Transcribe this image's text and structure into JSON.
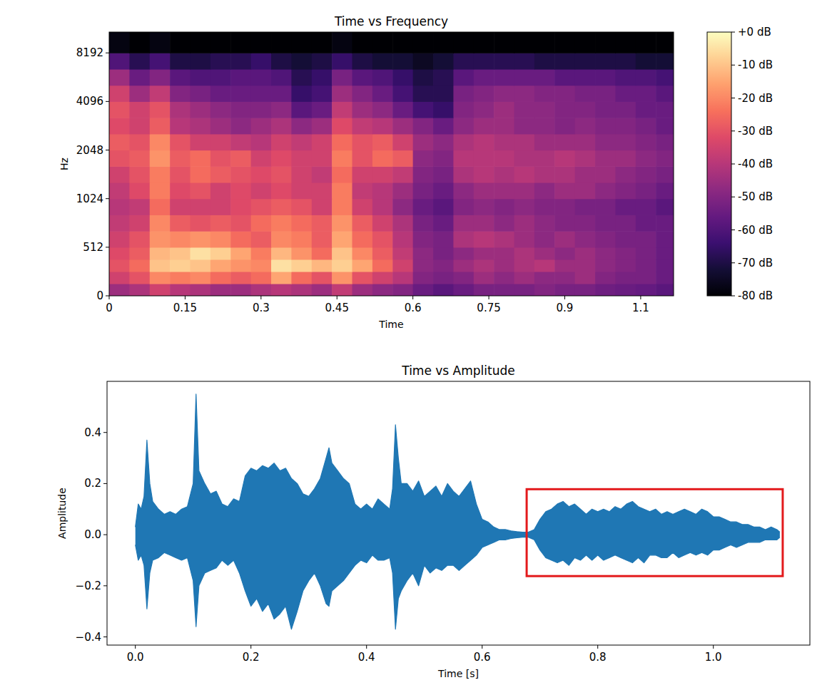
{
  "chart_data": [
    {
      "type": "heatmap",
      "title": "Time vs Frequency",
      "x_label": "Time",
      "y_label": "Hz",
      "log": "y",
      "xlim": [
        0,
        1.115
      ],
      "ylim": [
        0,
        11025
      ],
      "xticks": [
        0,
        0.15,
        0.3,
        0.45,
        0.6,
        0.75,
        0.9,
        {
          "value": 1.05,
          "label": "1.1"
        }
      ],
      "yticks": [
        0,
        512,
        1024,
        2048,
        4096,
        8192
      ],
      "x_edges": [
        0,
        0.04,
        0.08,
        0.12,
        0.16,
        0.2,
        0.24,
        0.28,
        0.32,
        0.36,
        0.4,
        0.44,
        0.48,
        0.52,
        0.56,
        0.6,
        0.64,
        0.68,
        0.72,
        0.76,
        0.8,
        0.84,
        0.88,
        0.92,
        0.96,
        1.0,
        1.04,
        1.08,
        1.115
      ],
      "y_edges": [
        0,
        128,
        256,
        384,
        512,
        645,
        813,
        1024,
        1290,
        1625,
        2048,
        2580,
        3250,
        4096,
        5160,
        6500,
        8192,
        11025
      ],
      "cells": [
        [
          -45,
          -42,
          -35,
          -40,
          -42,
          -45,
          -45,
          -42,
          -40,
          -42,
          -45,
          -38,
          -45,
          -48,
          -50,
          -55,
          -58,
          -55,
          -52,
          -52,
          -52,
          -50,
          -52,
          -52,
          -54,
          -55,
          -56,
          -58
        ],
        [
          -35,
          -30,
          -20,
          -22,
          -20,
          -25,
          -28,
          -25,
          -15,
          -25,
          -30,
          -18,
          -30,
          -35,
          -40,
          -50,
          -52,
          -50,
          -45,
          -48,
          -45,
          -48,
          -48,
          -45,
          -50,
          -52,
          -52,
          -55
        ],
        [
          -30,
          -25,
          -10,
          -8,
          -10,
          -15,
          -18,
          -20,
          -5,
          -8,
          -12,
          -8,
          -15,
          -25,
          -35,
          -48,
          -50,
          -45,
          -42,
          -45,
          -42,
          -40,
          -45,
          -45,
          -48,
          -50,
          -52,
          -55
        ],
        [
          -32,
          -28,
          -12,
          -10,
          -5,
          -8,
          -15,
          -22,
          -12,
          -18,
          -25,
          -10,
          -20,
          -28,
          -38,
          -48,
          -52,
          -48,
          -45,
          -45,
          -42,
          -45,
          -48,
          -45,
          -48,
          -50,
          -52,
          -55
        ],
        [
          -35,
          -30,
          -18,
          -20,
          -18,
          -20,
          -25,
          -28,
          -20,
          -22,
          -28,
          -15,
          -25,
          -30,
          -40,
          -50,
          -52,
          -42,
          -40,
          -42,
          -45,
          -48,
          -45,
          -48,
          -50,
          -52,
          -52,
          -55
        ],
        [
          -38,
          -35,
          -20,
          -28,
          -30,
          -28,
          -30,
          -25,
          -22,
          -25,
          -28,
          -18,
          -28,
          -35,
          -42,
          -52,
          -55,
          -45,
          -45,
          -48,
          -45,
          -48,
          -50,
          -50,
          -52,
          -52,
          -55,
          -55
        ],
        [
          -40,
          -38,
          -25,
          -35,
          -35,
          -35,
          -32,
          -30,
          -28,
          -30,
          -35,
          -22,
          -35,
          -40,
          -48,
          -55,
          -58,
          -50,
          -48,
          -50,
          -48,
          -50,
          -50,
          -52,
          -52,
          -55,
          -55,
          -58
        ],
        [
          -38,
          -32,
          -22,
          -32,
          -30,
          -35,
          -32,
          -35,
          -32,
          -35,
          -35,
          -22,
          -38,
          -40,
          -45,
          -52,
          -55,
          -48,
          -45,
          -45,
          -45,
          -48,
          -45,
          -45,
          -48,
          -50,
          -52,
          -55
        ],
        [
          -35,
          -30,
          -22,
          -30,
          -25,
          -28,
          -30,
          -32,
          -30,
          -35,
          -38,
          -25,
          -35,
          -35,
          -38,
          -50,
          -52,
          -42,
          -40,
          -42,
          -40,
          -42,
          -42,
          -45,
          -45,
          -48,
          -50,
          -52
        ],
        [
          -30,
          -28,
          -18,
          -28,
          -25,
          -30,
          -28,
          -35,
          -32,
          -35,
          -35,
          -22,
          -30,
          -25,
          -28,
          -48,
          -50,
          -40,
          -40,
          -40,
          -42,
          -42,
          -40,
          -42,
          -45,
          -45,
          -48,
          -50
        ],
        [
          -28,
          -30,
          -20,
          -30,
          -35,
          -35,
          -38,
          -40,
          -35,
          -38,
          -35,
          -25,
          -30,
          -28,
          -35,
          -45,
          -48,
          -42,
          -40,
          -42,
          -42,
          -45,
          -45,
          -45,
          -48,
          -48,
          -50,
          -52
        ],
        [
          -32,
          -35,
          -28,
          -40,
          -42,
          -45,
          -48,
          -45,
          -42,
          -48,
          -45,
          -32,
          -38,
          -40,
          -45,
          -50,
          -55,
          -48,
          -45,
          -45,
          -48,
          -48,
          -50,
          -48,
          -50,
          -50,
          -52,
          -55
        ],
        [
          -30,
          -35,
          -30,
          -42,
          -45,
          -48,
          -50,
          -50,
          -48,
          -58,
          -55,
          -38,
          -45,
          -48,
          -55,
          -62,
          -65,
          -50,
          -48,
          -45,
          -48,
          -48,
          -50,
          -50,
          -52,
          -52,
          -55,
          -55
        ],
        [
          -35,
          -45,
          -38,
          -50,
          -52,
          -55,
          -55,
          -55,
          -55,
          -65,
          -62,
          -45,
          -50,
          -55,
          -62,
          -68,
          -68,
          -52,
          -50,
          -48,
          -48,
          -50,
          -50,
          -52,
          -52,
          -55,
          -55,
          -58
        ],
        [
          -45,
          -55,
          -50,
          -58,
          -60,
          -60,
          -58,
          -58,
          -60,
          -68,
          -65,
          -52,
          -58,
          -60,
          -65,
          -70,
          -68,
          -58,
          -55,
          -55,
          -55,
          -55,
          -58,
          -58,
          -58,
          -60,
          -60,
          -62
        ],
        [
          -60,
          -68,
          -62,
          -70,
          -70,
          -68,
          -68,
          -65,
          -70,
          -72,
          -70,
          -65,
          -70,
          -72,
          -72,
          -75,
          -72,
          -68,
          -68,
          -68,
          -68,
          -70,
          -70,
          -70,
          -70,
          -70,
          -72,
          -72
        ],
        [
          -78,
          -80,
          -78,
          -80,
          -80,
          -80,
          -80,
          -80,
          -80,
          -80,
          -80,
          -78,
          -80,
          -80,
          -80,
          -80,
          -80,
          -80,
          -80,
          -80,
          -80,
          -80,
          -80,
          -80,
          -80,
          -80,
          -80,
          -80
        ]
      ],
      "color_range": [
        -80,
        0
      ],
      "color_ticks": [
        {
          "value": 0,
          "label": "+0 dB"
        },
        {
          "value": -10,
          "label": "-10 dB"
        },
        {
          "value": -20,
          "label": "-20 dB"
        },
        {
          "value": -30,
          "label": "-30 dB"
        },
        {
          "value": -40,
          "label": "-40 dB"
        },
        {
          "value": -50,
          "label": "-50 dB"
        },
        {
          "value": -60,
          "label": "-60 dB"
        },
        {
          "value": -70,
          "label": "-70 dB"
        },
        {
          "value": -80,
          "label": "-80 dB"
        }
      ]
    },
    {
      "type": "area",
      "title": "Time vs Amplitude",
      "x_label": "Time [s]",
      "y_label": "Amplitude",
      "xlim": [
        -0.049,
        1.167
      ],
      "ylim": [
        -0.432,
        0.6
      ],
      "xticks": [
        {
          "value": 0,
          "label": "0.0"
        },
        0.2,
        0.4,
        0.6,
        0.8,
        {
          "value": 1,
          "label": "1.0"
        }
      ],
      "yticks": [
        {
          "value": -0.4,
          "label": "−0.4"
        },
        {
          "value": -0.2,
          "label": "−0.2"
        },
        {
          "value": 0,
          "label": "0.0"
        },
        0.2,
        0.4
      ],
      "x": [
        0,
        0.005,
        0.01,
        0.015,
        0.02,
        0.025,
        0.03,
        0.04,
        0.05,
        0.06,
        0.07,
        0.08,
        0.09,
        0.1,
        0.105,
        0.11,
        0.12,
        0.13,
        0.14,
        0.15,
        0.16,
        0.17,
        0.18,
        0.19,
        0.2,
        0.21,
        0.22,
        0.23,
        0.24,
        0.25,
        0.26,
        0.27,
        0.28,
        0.29,
        0.3,
        0.31,
        0.32,
        0.33,
        0.335,
        0.34,
        0.35,
        0.36,
        0.37,
        0.38,
        0.39,
        0.4,
        0.41,
        0.42,
        0.43,
        0.44,
        0.445,
        0.45,
        0.455,
        0.46,
        0.47,
        0.48,
        0.49,
        0.5,
        0.51,
        0.52,
        0.53,
        0.54,
        0.55,
        0.56,
        0.57,
        0.58,
        0.59,
        0.6,
        0.61,
        0.62,
        0.63,
        0.64,
        0.65,
        0.66,
        0.67,
        0.68,
        0.69,
        0.7,
        0.71,
        0.72,
        0.73,
        0.74,
        0.75,
        0.76,
        0.77,
        0.78,
        0.79,
        0.8,
        0.81,
        0.82,
        0.83,
        0.84,
        0.85,
        0.86,
        0.87,
        0.88,
        0.89,
        0.9,
        0.91,
        0.92,
        0.93,
        0.94,
        0.95,
        0.96,
        0.97,
        0.98,
        0.99,
        1.0,
        1.01,
        1.02,
        1.03,
        1.04,
        1.05,
        1.06,
        1.07,
        1.08,
        1.09,
        1.1,
        1.11,
        1.115
      ],
      "series": [
        {
          "color": "#1f77b4",
          "values": [
            0.03,
            0.12,
            0.1,
            0.15,
            0.37,
            0.2,
            0.13,
            0.1,
            0.08,
            0.09,
            0.08,
            0.1,
            0.11,
            0.2,
            0.55,
            0.25,
            0.2,
            0.16,
            0.17,
            0.12,
            0.11,
            0.14,
            0.13,
            0.23,
            0.26,
            0.25,
            0.27,
            0.26,
            0.28,
            0.25,
            0.26,
            0.22,
            0.2,
            0.16,
            0.15,
            0.18,
            0.22,
            0.3,
            0.34,
            0.28,
            0.25,
            0.22,
            0.2,
            0.12,
            0.1,
            0.12,
            0.1,
            0.14,
            0.12,
            0.1,
            0.18,
            0.43,
            0.3,
            0.2,
            0.2,
            0.17,
            0.21,
            0.15,
            0.17,
            0.19,
            0.15,
            0.2,
            0.17,
            0.15,
            0.18,
            0.21,
            0.12,
            0.06,
            0.05,
            0.03,
            0.02,
            0.02,
            0.015,
            0.012,
            0.01,
            0.01,
            0.02,
            0.06,
            0.09,
            0.1,
            0.12,
            0.13,
            0.11,
            0.12,
            0.1,
            0.08,
            0.1,
            0.09,
            0.1,
            0.09,
            0.11,
            0.1,
            0.12,
            0.13,
            0.11,
            0.1,
            0.09,
            0.1,
            0.08,
            0.09,
            0.08,
            0.09,
            0.1,
            0.09,
            0.08,
            0.1,
            0.09,
            0.07,
            0.07,
            0.06,
            0.05,
            0.05,
            0.04,
            0.04,
            0.03,
            0.03,
            0.02,
            0.03,
            0.02,
            0.01
          ]
        },
        {
          "color": "#1f77b4",
          "values": [
            -0.04,
            -0.1,
            -0.08,
            -0.12,
            -0.29,
            -0.15,
            -0.1,
            -0.09,
            -0.07,
            -0.08,
            -0.09,
            -0.1,
            -0.09,
            -0.18,
            -0.36,
            -0.2,
            -0.15,
            -0.14,
            -0.13,
            -0.1,
            -0.12,
            -0.1,
            -0.15,
            -0.22,
            -0.28,
            -0.25,
            -0.3,
            -0.27,
            -0.33,
            -0.31,
            -0.28,
            -0.37,
            -0.3,
            -0.22,
            -0.18,
            -0.15,
            -0.2,
            -0.27,
            -0.28,
            -0.22,
            -0.2,
            -0.18,
            -0.15,
            -0.12,
            -0.1,
            -0.11,
            -0.08,
            -0.1,
            -0.1,
            -0.09,
            -0.15,
            -0.37,
            -0.25,
            -0.22,
            -0.18,
            -0.15,
            -0.2,
            -0.12,
            -0.15,
            -0.13,
            -0.14,
            -0.12,
            -0.12,
            -0.14,
            -0.12,
            -0.1,
            -0.08,
            -0.05,
            -0.04,
            -0.03,
            -0.02,
            -0.02,
            -0.015,
            -0.012,
            -0.01,
            -0.01,
            -0.02,
            -0.06,
            -0.09,
            -0.1,
            -0.11,
            -0.1,
            -0.12,
            -0.09,
            -0.1,
            -0.08,
            -0.1,
            -0.08,
            -0.1,
            -0.09,
            -0.08,
            -0.09,
            -0.1,
            -0.11,
            -0.09,
            -0.11,
            -0.08,
            -0.08,
            -0.09,
            -0.09,
            -0.07,
            -0.09,
            -0.08,
            -0.07,
            -0.08,
            -0.07,
            -0.08,
            -0.06,
            -0.06,
            -0.05,
            -0.04,
            -0.05,
            -0.04,
            -0.03,
            -0.03,
            -0.03,
            -0.02,
            -0.02,
            -0.02,
            -0.01
          ]
        }
      ],
      "highlight": {
        "x": [
          0.677,
          1.12
        ],
        "y": [
          -0.162,
          0.178
        ],
        "color": "#e31a1c"
      }
    }
  ]
}
